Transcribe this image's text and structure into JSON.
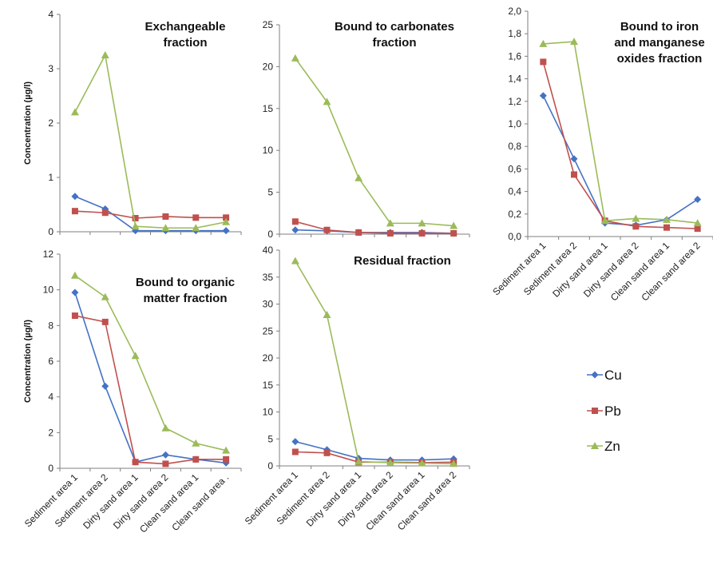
{
  "colors": {
    "Cu": "#4472C4",
    "Pb": "#C0504D",
    "Zn": "#9BBB59",
    "axis": "#7F7F7F"
  },
  "legend": {
    "items": [
      "Cu",
      "Pb",
      "Zn"
    ],
    "placement": "bottom-right"
  },
  "chart_data": [
    {
      "type": "line",
      "title_lines": [
        "Exchangeable",
        "fraction"
      ],
      "ylabel": "Concentration (µg/l)",
      "categories": [
        "Sediment area 1",
        "Sediment area 2",
        "Dirty sand area 1",
        "Dirty sand area 2",
        "Clean sand area 1",
        "Clean sand area 2"
      ],
      "show_categories": false,
      "ylim": [
        0,
        4
      ],
      "yticks": [
        "0",
        "1",
        "2",
        "3",
        "4"
      ],
      "series": [
        {
          "name": "Cu",
          "values": [
            0.65,
            0.42,
            0.02,
            0.02,
            0.02,
            0.02
          ]
        },
        {
          "name": "Pb",
          "values": [
            0.38,
            0.35,
            0.25,
            0.28,
            0.26,
            0.26
          ]
        },
        {
          "name": "Zn",
          "values": [
            2.2,
            3.25,
            0.1,
            0.07,
            0.07,
            0.18
          ]
        }
      ]
    },
    {
      "type": "line",
      "title_lines": [
        "Bound to carbonates",
        "fraction"
      ],
      "ylabel": "",
      "categories": [
        "Sediment area 1",
        "Sediment area 2",
        "Dirty sand area 1",
        "Dirty sand area 2",
        "Clean sand area 1",
        "Clean sand area 2"
      ],
      "show_categories": false,
      "ylim": [
        0,
        25
      ],
      "yticks": [
        "0",
        "5",
        "10",
        "15",
        "20",
        "25"
      ],
      "series": [
        {
          "name": "Cu",
          "values": [
            0.5,
            0.4,
            0.2,
            0.2,
            0.2,
            0.1
          ]
        },
        {
          "name": "Pb",
          "values": [
            1.5,
            0.5,
            0.2,
            0.1,
            0.1,
            0.1
          ]
        },
        {
          "name": "Zn",
          "values": [
            21,
            15.8,
            6.7,
            1.3,
            1.3,
            1.0
          ]
        }
      ]
    },
    {
      "type": "line",
      "title_lines": [
        "Bound to iron",
        "and manganese",
        "oxides fraction"
      ],
      "ylabel": "",
      "categories": [
        "Sediment area 1",
        "Sediment area 2",
        "Dirty sand area 1",
        "Dirty sand area 2",
        "Clean sand area 1",
        "Clean sand area 2"
      ],
      "show_categories": true,
      "ylim": [
        0,
        2.0
      ],
      "yticks": [
        "0,0",
        "0,2",
        "0,4",
        "0,6",
        "0,8",
        "1,0",
        "1,2",
        "1,4",
        "1,6",
        "1,8",
        "2,0"
      ],
      "series": [
        {
          "name": "Cu",
          "values": [
            1.25,
            0.69,
            0.12,
            0.1,
            0.15,
            0.33
          ]
        },
        {
          "name": "Pb",
          "values": [
            1.55,
            0.55,
            0.14,
            0.09,
            0.08,
            0.07
          ]
        },
        {
          "name": "Zn",
          "values": [
            1.71,
            1.73,
            0.14,
            0.16,
            0.15,
            0.12
          ]
        }
      ]
    },
    {
      "type": "line",
      "title_lines": [
        "Bound to organic",
        "matter fraction"
      ],
      "ylabel": "Concentration (µg/l)",
      "categories": [
        "Sediment area 1",
        "Sediment area 2",
        "Dirty sand area 1",
        "Dirty sand area 2",
        "Clean sand area 1",
        "Clean sand area ."
      ],
      "show_categories": true,
      "ylim": [
        0,
        12
      ],
      "yticks": [
        "0",
        "2",
        "4",
        "6",
        "8",
        "10",
        "12"
      ],
      "series": [
        {
          "name": "Cu",
          "values": [
            9.85,
            4.6,
            0.35,
            0.75,
            0.5,
            0.3
          ]
        },
        {
          "name": "Pb",
          "values": [
            8.55,
            8.2,
            0.35,
            0.25,
            0.5,
            0.5
          ]
        },
        {
          "name": "Zn",
          "values": [
            10.8,
            9.6,
            6.3,
            2.25,
            1.4,
            1.0
          ]
        }
      ]
    },
    {
      "type": "line",
      "title_lines": [
        "Residual fraction"
      ],
      "ylabel": "",
      "categories": [
        "Sediment area 1",
        "Sediment area 2",
        "Dirty sand area 1",
        "Dirty sand area 2",
        "Clean sand area 1",
        "Clean sand area 2"
      ],
      "show_categories": true,
      "ylim": [
        0,
        40
      ],
      "yticks": [
        "0",
        "5",
        "10",
        "15",
        "20",
        "25",
        "30",
        "35",
        "40"
      ],
      "series": [
        {
          "name": "Cu",
          "values": [
            4.5,
            3.0,
            1.4,
            1.1,
            1.1,
            1.3
          ]
        },
        {
          "name": "Pb",
          "values": [
            2.6,
            2.4,
            0.7,
            0.7,
            0.6,
            0.7
          ]
        },
        {
          "name": "Zn",
          "values": [
            38,
            28,
            0.8,
            0.6,
            0.5,
            0.4
          ]
        }
      ]
    }
  ]
}
